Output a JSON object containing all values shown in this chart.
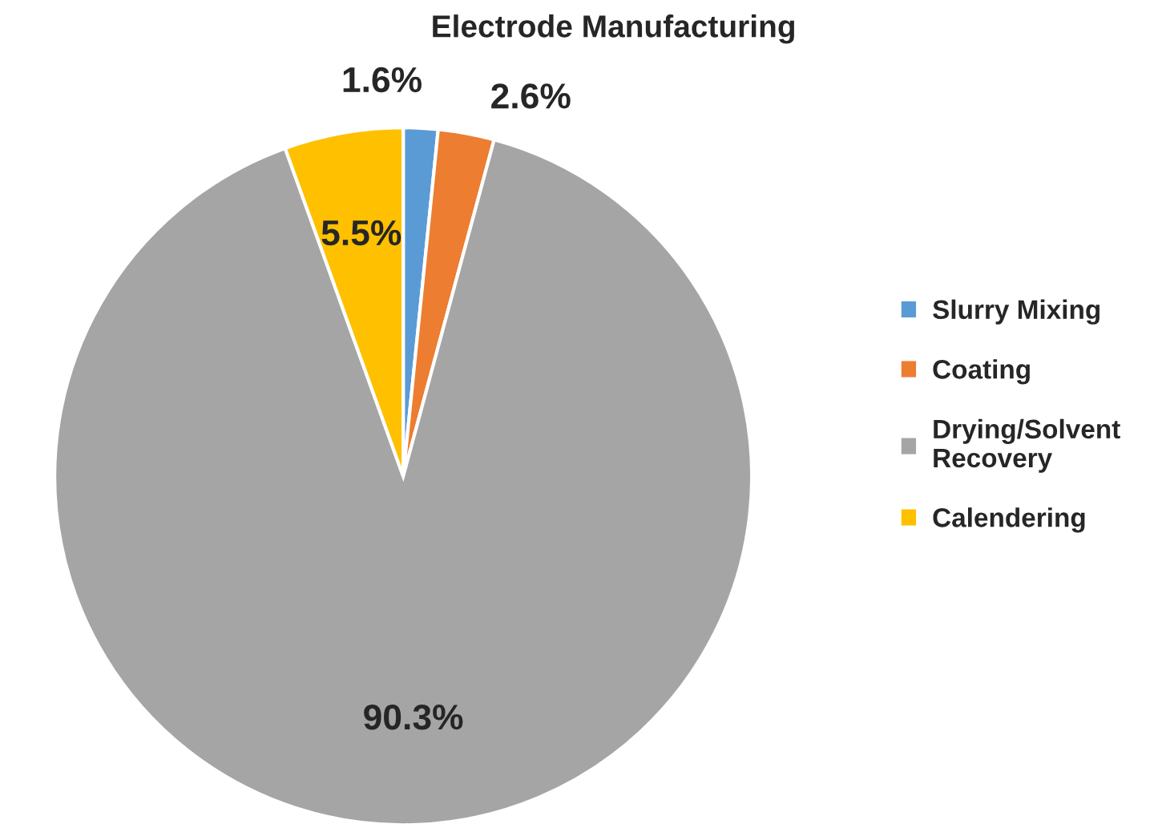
{
  "chart_data": {
    "type": "pie",
    "title": "Electrode Manufacturing",
    "categories": [
      "Slurry Mixing",
      "Coating",
      "Drying/Solvent Recovery",
      "Calendering"
    ],
    "values": [
      1.6,
      2.6,
      90.3,
      5.5
    ],
    "colors": [
      "#5b9bd5",
      "#ed7d31",
      "#a5a5a5",
      "#ffc000"
    ],
    "value_labels": [
      "1.6%",
      "2.6%",
      "90.3%",
      "5.5%"
    ],
    "legend": "right"
  }
}
